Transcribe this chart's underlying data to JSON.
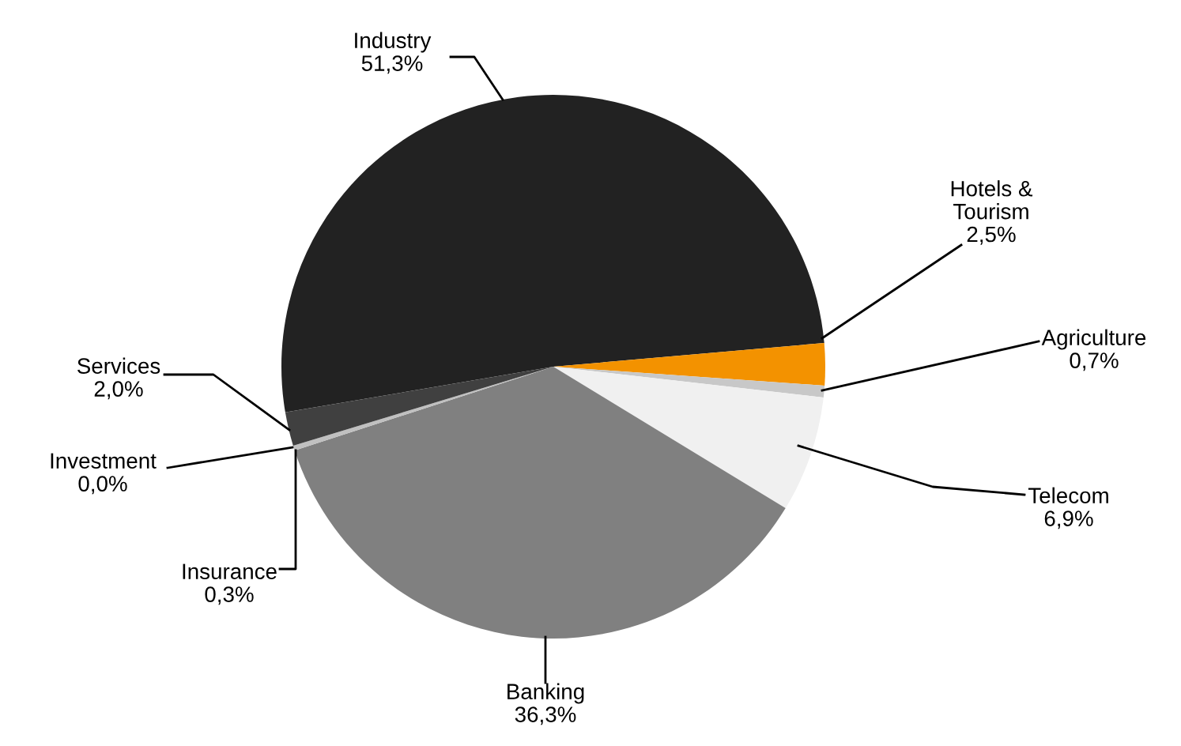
{
  "chart_data": {
    "type": "pie",
    "categories": [
      "Industry",
      "Hotels &\nTourism",
      "Agriculture",
      "Telecom",
      "Banking",
      "Insurance",
      "Investment",
      "Services"
    ],
    "values": [
      51.3,
      2.5,
      0.7,
      6.9,
      36.3,
      0.3,
      0.0,
      2.0
    ],
    "value_labels": [
      "51,3%",
      "2,5%",
      "0,7%",
      "6,9%",
      "36,3%",
      "0,3%",
      "0,0%",
      "2,0%"
    ],
    "colors": [
      "#222222",
      "#f39200",
      "#c8c8c8",
      "#f0f0f0",
      "#808080",
      "#c0c0c0",
      "#a0a0a0",
      "#404040"
    ]
  }
}
